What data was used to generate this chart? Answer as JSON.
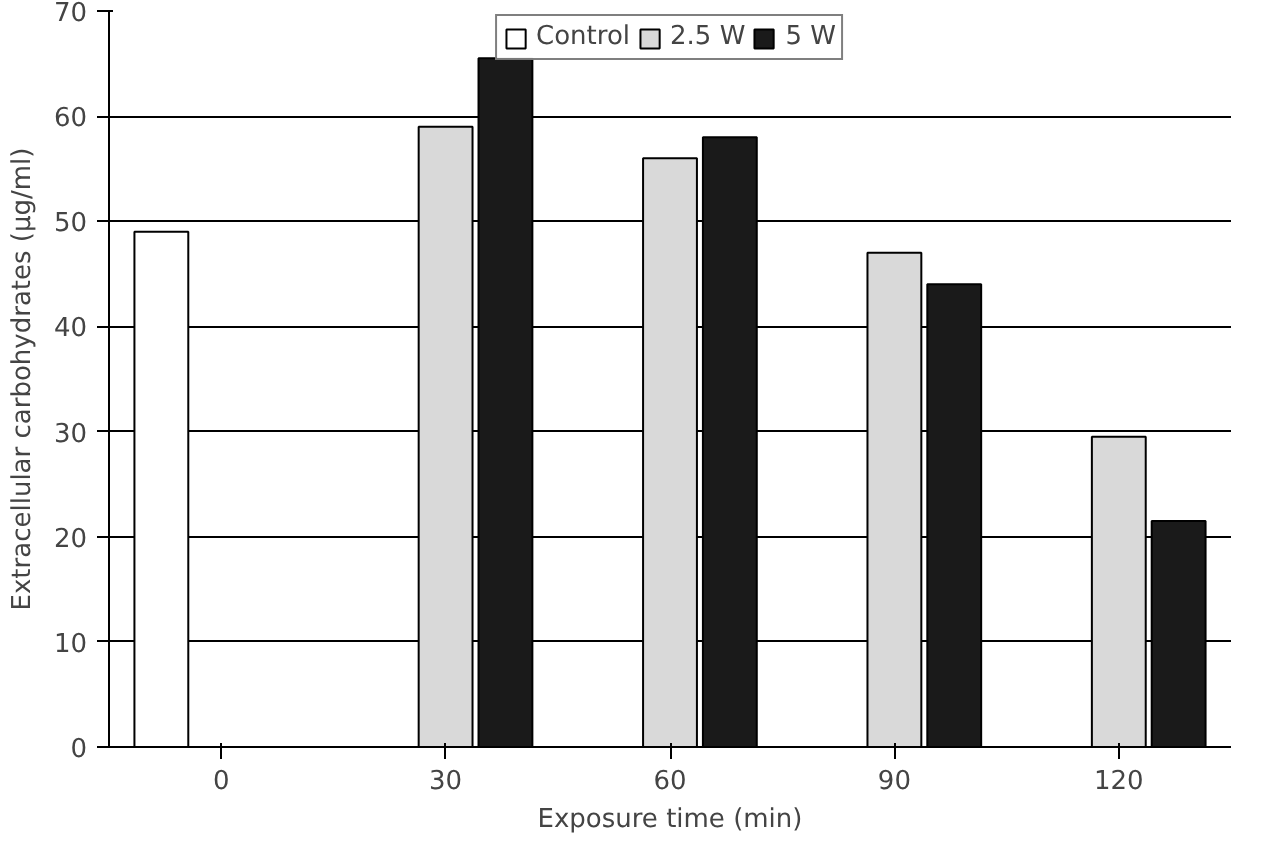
{
  "chart_data": {
    "type": "bar",
    "xlabel": "Exposure time (min)",
    "ylabel": "Extracellular carbohydrates (µg/ml)",
    "categories": [
      "0",
      "30",
      "60",
      "90",
      "120"
    ],
    "series": [
      {
        "name": "Control",
        "color": "#ffffff",
        "values": [
          49,
          null,
          null,
          null,
          null
        ]
      },
      {
        "name": "2.5 W",
        "color": "#d9d9d9",
        "values": [
          null,
          59,
          56,
          47,
          29.5
        ]
      },
      {
        "name": "5 W",
        "color": "#1a1a1a",
        "values": [
          null,
          65.5,
          58,
          44,
          21.5
        ]
      }
    ],
    "ylim": [
      0,
      70
    ],
    "yticks": [
      0,
      10,
      20,
      30,
      40,
      50,
      60,
      70
    ],
    "grid": "y",
    "legend": "top"
  }
}
